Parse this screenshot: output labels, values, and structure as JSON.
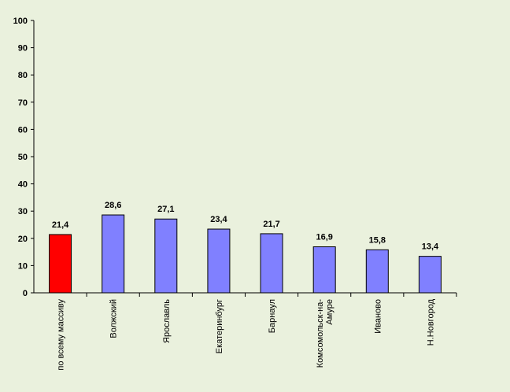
{
  "chart_data": {
    "type": "bar",
    "categories": [
      [
        "по всему массиву"
      ],
      [
        "Волжский"
      ],
      [
        "Ярославль"
      ],
      [
        "Екатеринбург"
      ],
      [
        "Барнаул"
      ],
      [
        "Комсомольск-на-",
        "Амуре"
      ],
      [
        "Иваново"
      ],
      [
        "Н.Новгород"
      ]
    ],
    "values": [
      21.4,
      28.6,
      27.1,
      23.4,
      21.7,
      16.9,
      15.8,
      13.4
    ],
    "value_labels": [
      "21,4",
      "28,6",
      "27,1",
      "23,4",
      "21,7",
      "16,9",
      "15,8",
      "13,4"
    ],
    "y_ticks": [
      0,
      10,
      20,
      30,
      40,
      50,
      60,
      70,
      80,
      90,
      100
    ],
    "ylim": [
      0,
      100
    ],
    "title": "",
    "xlabel": "",
    "ylabel": "",
    "grid": false,
    "legend": "none",
    "colors": {
      "highlight": "#ff0000",
      "bars": "#8080ff",
      "axis": "#000000",
      "background": "#eaf1dd"
    }
  }
}
